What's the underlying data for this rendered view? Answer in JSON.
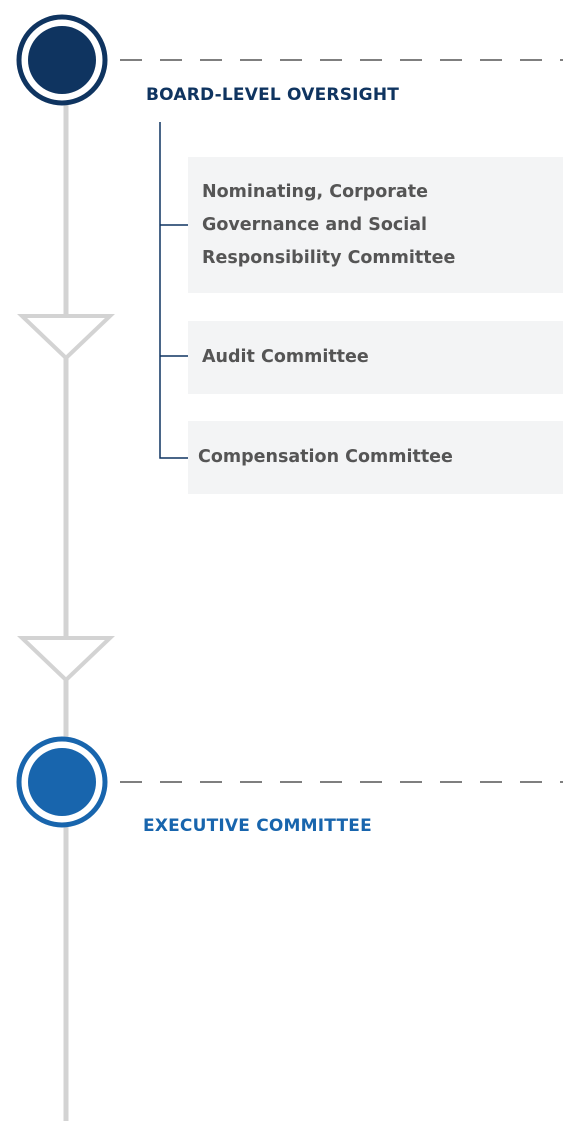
{
  "sections": [
    {
      "title": "BOARD-LEVEL OVERSIGHT",
      "items": [
        "Nominating, Corporate Governance and Social Responsibility Committee",
        "Audit Committee",
        "Compensation Committee"
      ]
    },
    {
      "title": "EXECUTIVE COMMITTEE"
    }
  ]
}
